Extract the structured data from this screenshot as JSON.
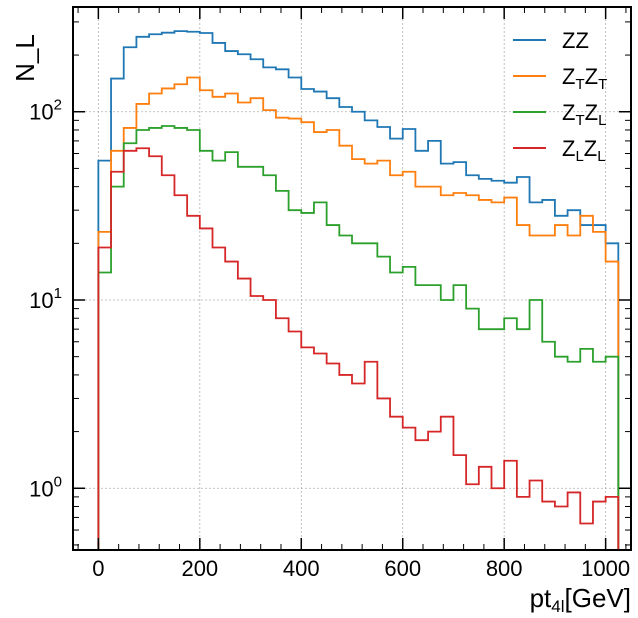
{
  "chart_data": {
    "type": "histogram-step",
    "yscale": "log",
    "xlabel_main": "pt",
    "xlabel_sub": "4l",
    "xlabel_unit": "[GeV]",
    "ylabel": "N_L",
    "xlim": [
      -50,
      1050
    ],
    "ylim": [
      0.47,
      360
    ],
    "bin_width": 25,
    "xticks": [
      0,
      200,
      400,
      600,
      800,
      1000
    ],
    "xtick_labels": [
      "0",
      "200",
      "400",
      "600",
      "800",
      "1000"
    ],
    "yticks": [
      {
        "value": 1,
        "base": "10",
        "exp": "0"
      },
      {
        "value": 10,
        "base": "10",
        "exp": "1"
      },
      {
        "value": 100,
        "base": "10",
        "exp": "2"
      }
    ],
    "grid": true,
    "legend_position": "top-right",
    "series": [
      {
        "name": "ZZ",
        "legend_main1": "ZZ",
        "legend_sub1": "",
        "legend_main2": "",
        "legend_sub2": "",
        "color": "#1f77b4",
        "values": [
          55,
          150,
          220,
          250,
          258,
          263,
          268,
          266,
          262,
          232,
          210,
          202,
          190,
          172,
          168,
          152,
          132,
          128,
          118,
          106,
          100,
          90,
          83,
          72,
          81,
          62,
          70,
          53,
          54,
          46,
          44,
          43,
          42,
          45,
          33,
          34,
          28,
          30,
          25,
          25,
          20
        ]
      },
      {
        "name": "Z_TZ_T",
        "legend_main1": "Z",
        "legend_sub1": "T",
        "legend_main2": "Z",
        "legend_sub2": "T",
        "color": "#ff7f0e",
        "values": [
          23,
          62,
          82,
          110,
          125,
          133,
          140,
          152,
          130,
          120,
          125,
          112,
          118,
          102,
          93,
          92,
          88,
          78,
          80,
          66,
          56,
          53,
          55,
          46,
          48,
          40,
          40,
          36,
          37,
          36,
          34,
          33,
          35,
          25,
          22,
          22,
          25,
          22,
          28,
          23,
          16
        ]
      },
      {
        "name": "Z_TZ_L",
        "legend_main1": "Z",
        "legend_sub1": "T",
        "legend_main2": "Z",
        "legend_sub2": "L",
        "color": "#2ca02c",
        "values": [
          14,
          40,
          68,
          80,
          82,
          84,
          82,
          80,
          62,
          55,
          61,
          51,
          51,
          46,
          38,
          30,
          29,
          33,
          25,
          22,
          20,
          20,
          17,
          14,
          15,
          12,
          12,
          10,
          12,
          9,
          7,
          7,
          8,
          7,
          10,
          6,
          5,
          4.7,
          5.5,
          4.7,
          5
        ]
      },
      {
        "name": "Z_LZ_L",
        "legend_main1": "Z",
        "legend_sub1": "L",
        "legend_main2": "Z",
        "legend_sub2": "L",
        "color": "#d62728",
        "values": [
          19,
          48,
          62,
          64,
          58,
          46,
          36,
          28,
          24,
          19,
          16,
          13,
          10.5,
          10,
          8,
          6.8,
          5.6,
          5.2,
          4.6,
          4,
          3.6,
          4.7,
          3,
          2.4,
          2.1,
          1.8,
          2,
          2.4,
          1.5,
          1.05,
          1.3,
          1,
          1.4,
          0.9,
          1.1,
          0.85,
          0.8,
          0.95,
          0.65,
          0.85,
          0.9
        ]
      }
    ]
  }
}
